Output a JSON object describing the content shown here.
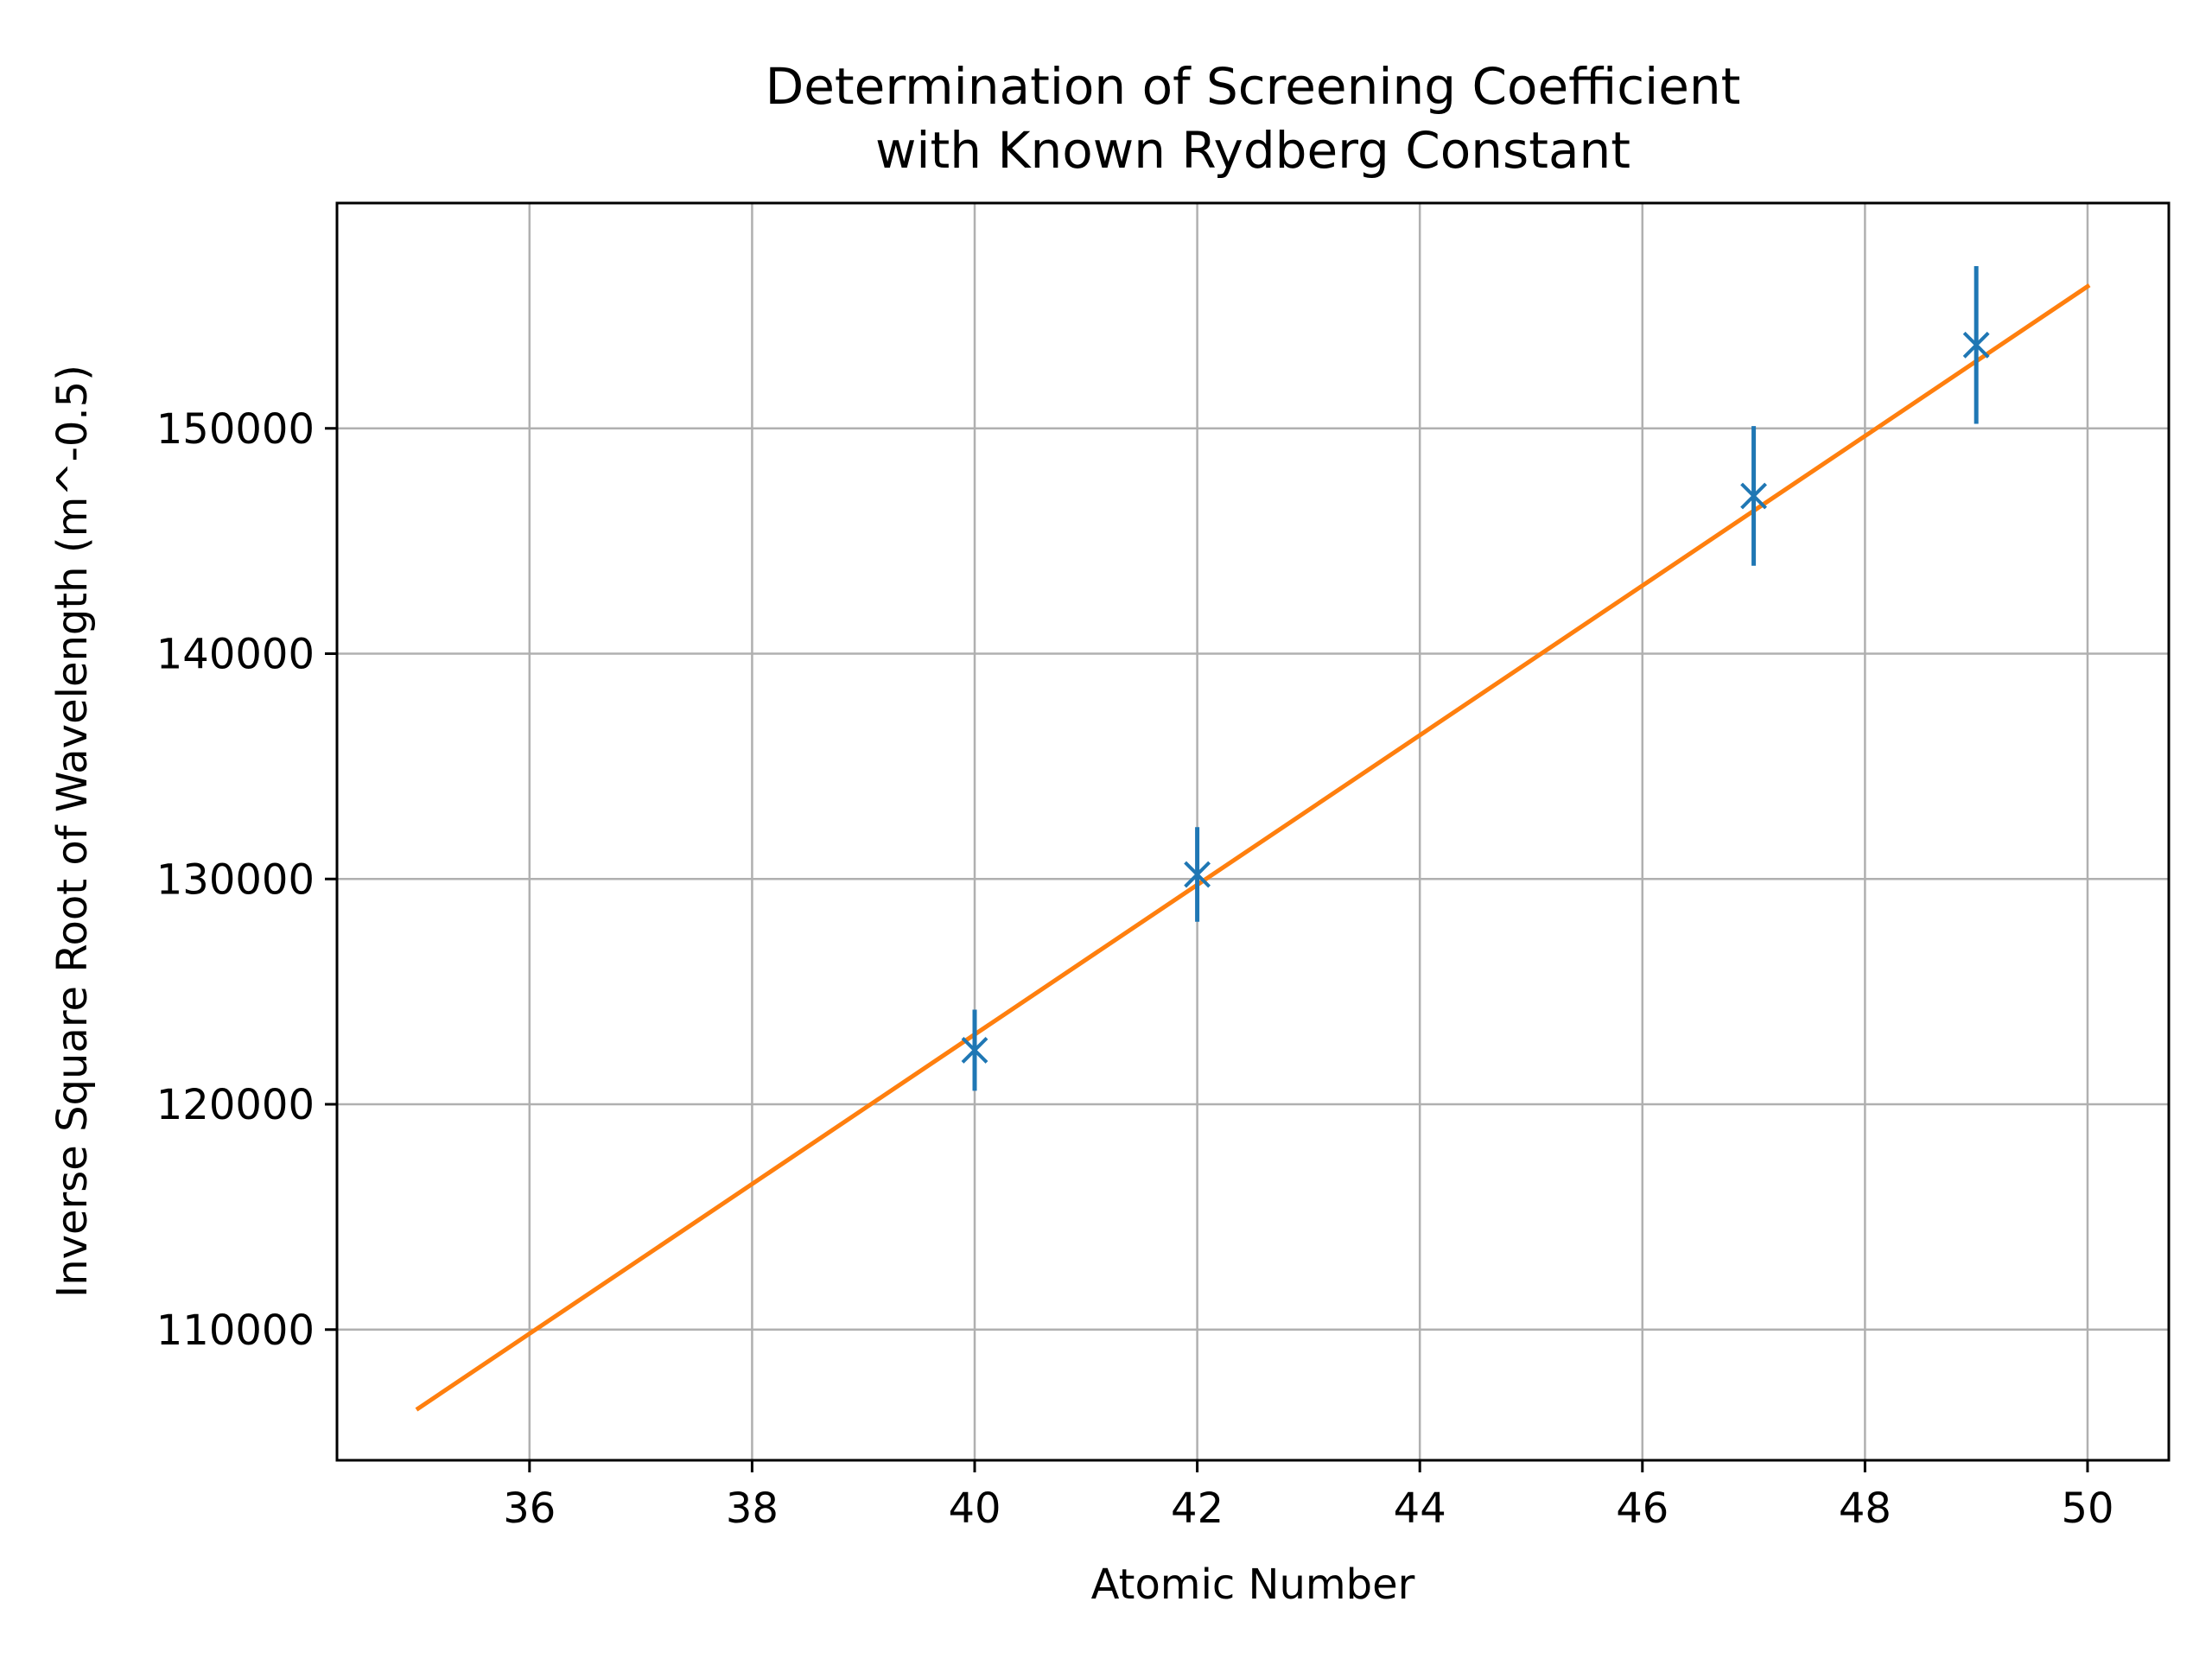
{
  "chart_data": {
    "type": "scatter",
    "title": "Determination of Screening Coefficient",
    "subtitle": "with Known Rydberg Constant",
    "xlabel": "Atomic Number",
    "ylabel": "Inverse Square Root of Wavelength (m^-0.5)",
    "xlim": [
      34.27,
      50.73
    ],
    "ylim": [
      104200,
      160000
    ],
    "xticks": [
      36,
      38,
      40,
      42,
      44,
      46,
      48,
      50
    ],
    "yticks": [
      110000,
      120000,
      130000,
      140000,
      150000
    ],
    "grid": true,
    "points": [
      {
        "x": 40,
        "y": 122400,
        "yerr": 1800
      },
      {
        "x": 42,
        "y": 130200,
        "yerr": 2100
      },
      {
        "x": 47,
        "y": 147000,
        "yerr": 3100
      },
      {
        "x": 49,
        "y": 153700,
        "yerr": 3500
      }
    ],
    "fit_line": {
      "x": [
        35,
        50
      ],
      "y": [
        106500,
        156300
      ]
    },
    "colors": {
      "points": "#1f77b4",
      "fit": "#ff7f0e",
      "grid": "#b0b0b0",
      "axes": "#000000"
    }
  }
}
